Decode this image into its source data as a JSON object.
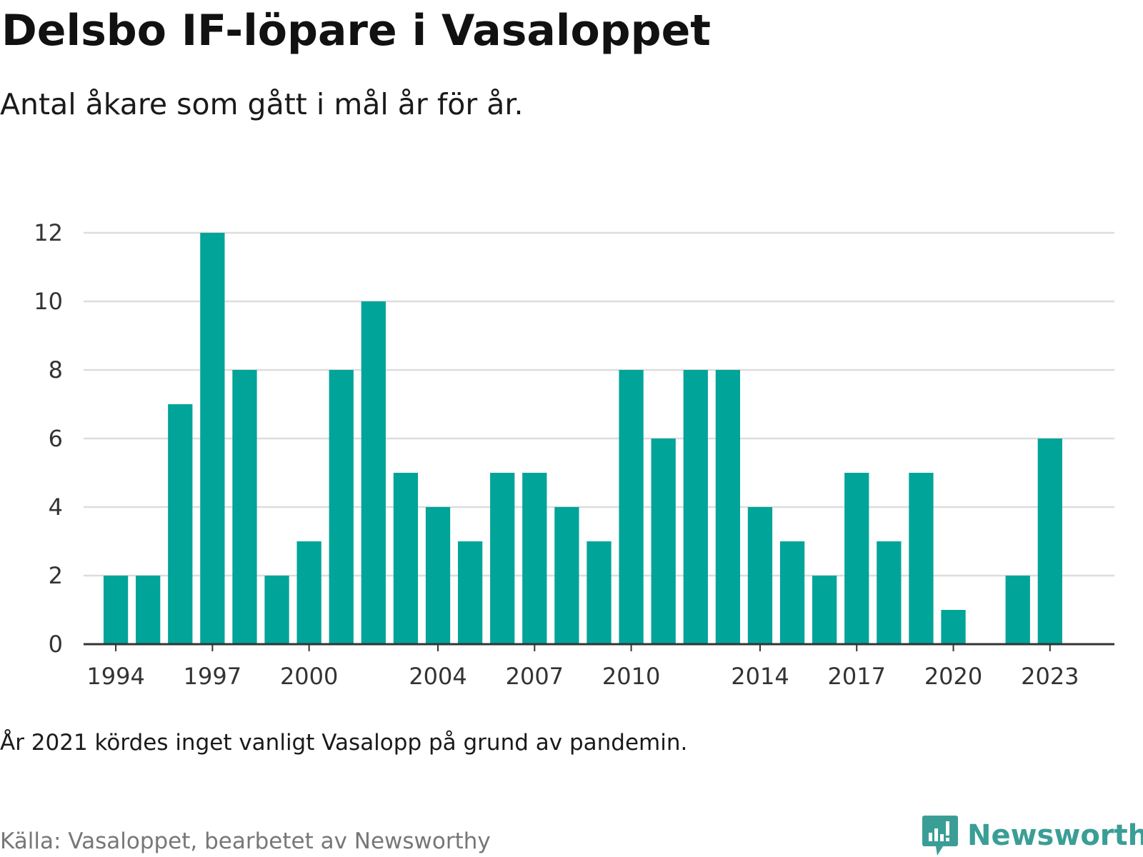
{
  "header": {
    "title": "Delsbo IF-löpare i Vasaloppet",
    "subtitle": "Antal åkare som gått i mål år för år."
  },
  "footer": {
    "note": "År 2021 kördes inget vanligt Vasalopp på grund av pandemin.",
    "source": "Källa: Vasaloppet, bearbetet av Newsworthy",
    "logo_text": "Newsworthy"
  },
  "colors": {
    "bar": "#00a499",
    "grid": "#dddddd",
    "axis": "#333333",
    "logo": "#3a9e96"
  },
  "chart_data": {
    "type": "bar",
    "title": "Delsbo IF-löpare i Vasaloppet",
    "subtitle": "Antal åkare som gått i mål år för år.",
    "xlabel": "",
    "ylabel": "",
    "ylim": [
      0,
      12
    ],
    "yticks": [
      0,
      2,
      4,
      6,
      8,
      10,
      12
    ],
    "xticks": [
      1994,
      1997,
      2000,
      2004,
      2007,
      2010,
      2014,
      2017,
      2020,
      2023
    ],
    "xlim": [
      1993,
      2025
    ],
    "grid": true,
    "legend": "none",
    "x": [
      1994,
      1995,
      1996,
      1997,
      1998,
      1999,
      2000,
      2001,
      2002,
      2003,
      2004,
      2005,
      2006,
      2007,
      2008,
      2009,
      2010,
      2011,
      2012,
      2013,
      2014,
      2015,
      2016,
      2017,
      2018,
      2019,
      2020,
      2022,
      2023
    ],
    "values": [
      2,
      2,
      7,
      12,
      8,
      2,
      3,
      8,
      10,
      5,
      4,
      3,
      5,
      5,
      4,
      3,
      8,
      6,
      8,
      8,
      4,
      3,
      2,
      5,
      3,
      5,
      1,
      2,
      6
    ]
  }
}
